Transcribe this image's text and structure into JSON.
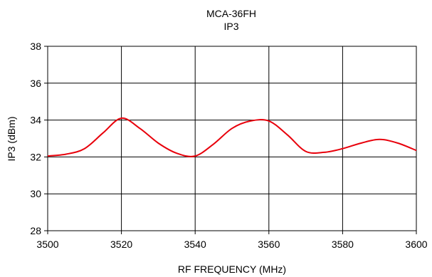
{
  "chart_data": {
    "type": "line",
    "title": "MCA-36FH",
    "subtitle": "IP3",
    "xlabel": "RF FREQUENCY (MHz)",
    "ylabel": "IP3 (dBm)",
    "xlim": [
      3500,
      3600
    ],
    "ylim": [
      28,
      38
    ],
    "xticks": [
      "3500",
      "3520",
      "3540",
      "3560",
      "3580",
      "3600"
    ],
    "yticks": [
      "28",
      "30",
      "32",
      "34",
      "36",
      "38"
    ],
    "grid": true,
    "legend": "none",
    "series": [
      {
        "color": "#e8000b",
        "x": [
          3500,
          3505,
          3510,
          3515,
          3520,
          3525,
          3530,
          3535,
          3540,
          3545,
          3550,
          3555,
          3560,
          3565,
          3570,
          3575,
          3580,
          3585,
          3590,
          3595,
          3600
        ],
        "y": [
          32.05,
          32.15,
          32.45,
          33.3,
          34.1,
          33.55,
          32.75,
          32.2,
          32.05,
          32.7,
          33.55,
          33.95,
          33.95,
          33.2,
          32.3,
          32.25,
          32.45,
          32.75,
          32.95,
          32.75,
          32.35
        ]
      }
    ]
  }
}
